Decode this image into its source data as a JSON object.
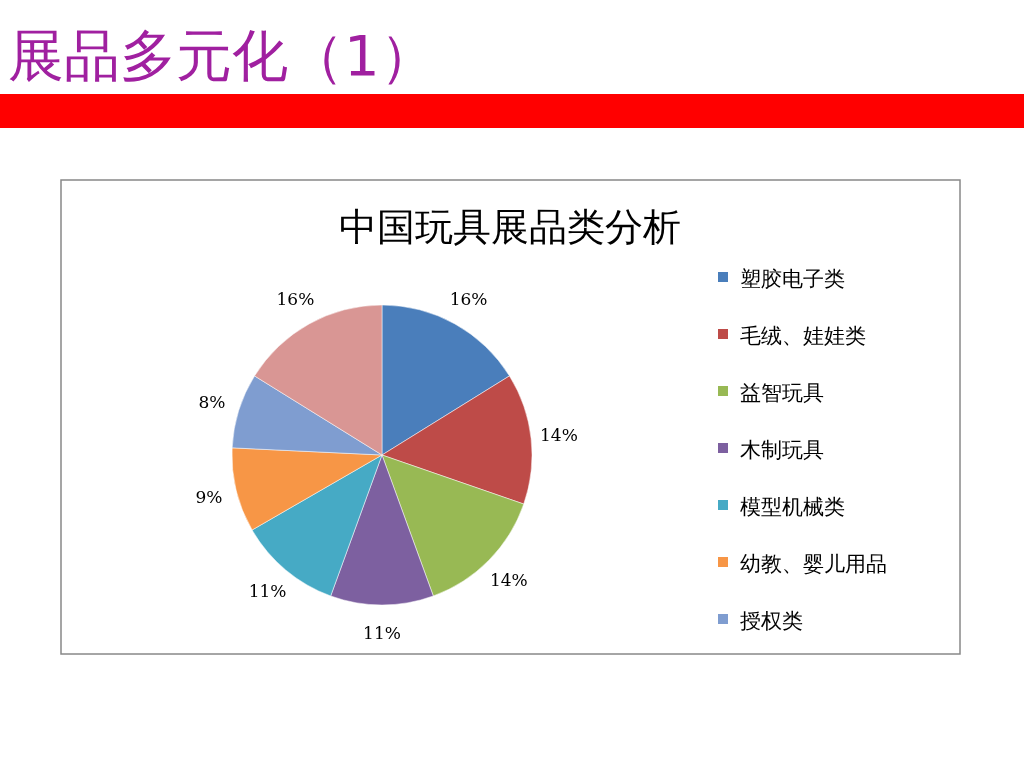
{
  "chart_data": {
    "type": "pie",
    "title": "展品多元化（1）",
    "subtitle": "中国玩具展品类分析",
    "categories": [
      "塑胶电子类",
      "毛绒、娃娃类",
      "益智玩具",
      "木制玩具",
      "模型机械类",
      "幼教、婴儿用品",
      "授权类",
      null
    ],
    "values": [
      16,
      14,
      14,
      11,
      11,
      9,
      8,
      16
    ],
    "colors": [
      "#4a7ebb",
      "#be4b48",
      "#98b954",
      "#7d60a0",
      "#46aac5",
      "#f79646",
      "#7f9dd0",
      "#d99694"
    ],
    "value_labels": [
      "16%",
      "14%",
      "14%",
      "11%",
      "11%",
      "9%",
      "8%",
      "16%"
    ],
    "legend": "right"
  }
}
